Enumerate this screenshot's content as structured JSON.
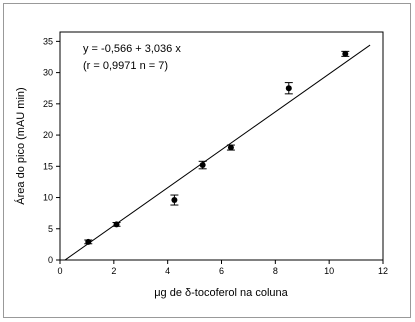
{
  "chart_data": {
    "type": "scatter",
    "x_label": "μg de δ-tocoferol na coluna",
    "y_label": "Área do pico (mAU min)",
    "annotations": [
      "y = -0,566 + 3,036 x",
      "(r = 0,9971   n = 7)"
    ],
    "series": [
      {
        "color": "#000000",
        "x": [
          1.05,
          2.1,
          4.25,
          5.3,
          6.35,
          8.5,
          10.6
        ],
        "values": [
          2.9,
          5.7,
          9.6,
          15.2,
          18.0,
          27.5,
          33.0
        ],
        "errors": [
          0.3,
          0.3,
          0.8,
          0.6,
          0.4,
          0.9,
          0.4
        ]
      }
    ],
    "fit": {
      "intercept": -0.566,
      "slope": 3.036,
      "x": [
        0.19,
        11.52
      ],
      "color": "#000000"
    },
    "xlim": [
      0,
      12
    ],
    "xticks": [
      0,
      2,
      4,
      6,
      8,
      10,
      12
    ],
    "ylim": [
      0,
      36.5
    ],
    "yticks": [
      0,
      5,
      10,
      15,
      20,
      25,
      30,
      35
    ]
  }
}
